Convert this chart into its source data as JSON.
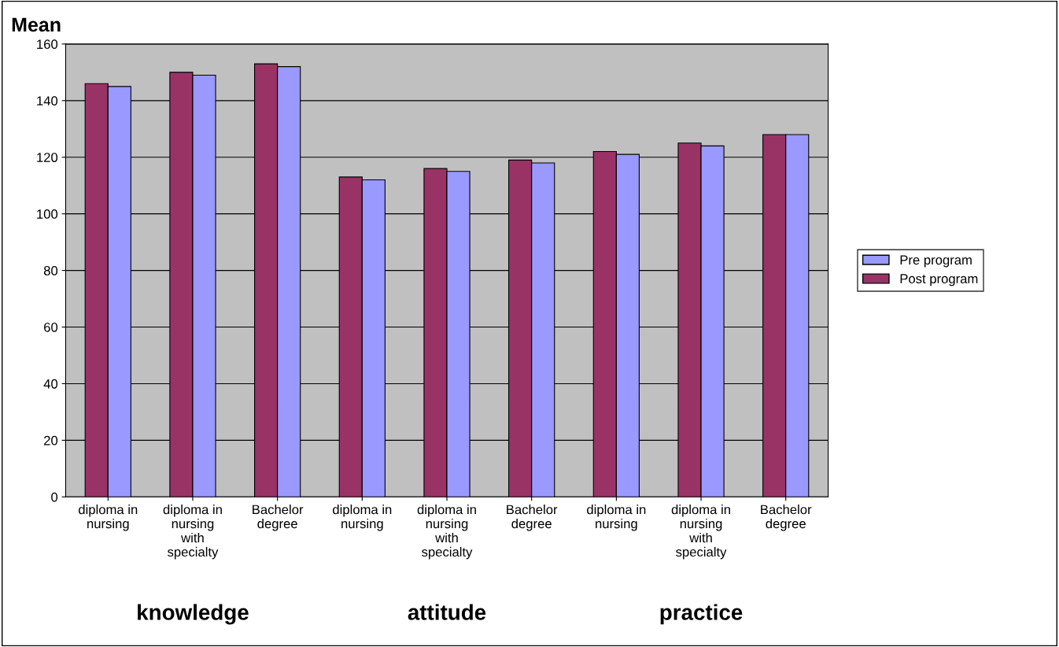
{
  "chart_data": {
    "type": "bar",
    "ylabel": "Mean",
    "categories": [
      "diploma in nursing",
      "diploma in nursing with specialty",
      "Bachelor degree",
      "diploma in nursing",
      "diploma in nursing with specialty",
      "Bachelor degree",
      "diploma in nursing",
      "diploma in nursing with specialty",
      "Bachelor degree"
    ],
    "series": [
      {
        "name": "Post program",
        "color": "#993366",
        "values": [
          146,
          150,
          153,
          113,
          116,
          119,
          122,
          125,
          128
        ]
      },
      {
        "name": "Pre program",
        "color": "#9999ff",
        "values": [
          145,
          149,
          152,
          112,
          115,
          118,
          121,
          124,
          128
        ]
      }
    ],
    "annotations": [
      "knowledge",
      "attitude",
      "practice"
    ],
    "ylim": [
      0,
      160
    ],
    "yticks": [
      0,
      20,
      40,
      60,
      80,
      100,
      120,
      140,
      160
    ],
    "grid": "y",
    "legend": "right"
  }
}
